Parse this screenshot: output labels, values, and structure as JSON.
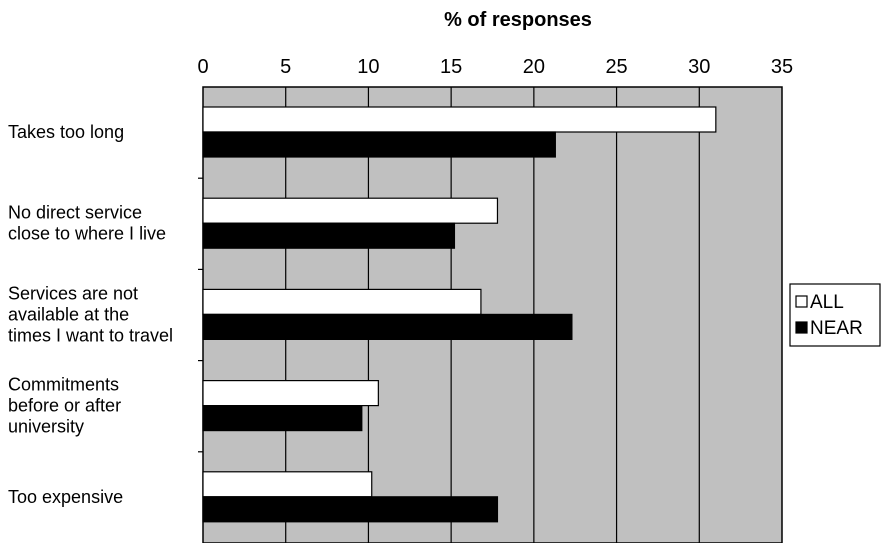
{
  "chart_data": {
    "type": "bar",
    "orientation": "horizontal",
    "title": "% of responses",
    "xlim": [
      0,
      35
    ],
    "xticks": [
      "0",
      "5",
      "10",
      "15",
      "20",
      "25",
      "30",
      "35"
    ],
    "xtick_values": [
      0,
      5,
      10,
      15,
      20,
      25,
      30,
      35
    ],
    "categories": [
      [
        "Takes too long"
      ],
      [
        "No direct service",
        "close to where I live"
      ],
      [
        "Services are not",
        "available at the",
        "times I want to travel"
      ],
      [
        "Commitments",
        "before or after",
        "university"
      ],
      [
        "Too expensive"
      ]
    ],
    "series": [
      {
        "name": "ALL",
        "values": [
          31.0,
          17.8,
          16.8,
          10.6,
          10.2
        ],
        "color": "#ffffff"
      },
      {
        "name": "NEAR",
        "values": [
          21.3,
          15.2,
          22.3,
          9.6,
          17.8
        ],
        "color": "#000000"
      }
    ],
    "grid": true,
    "plot_background": "#c0c0c0",
    "legend": {
      "position": "right"
    }
  }
}
